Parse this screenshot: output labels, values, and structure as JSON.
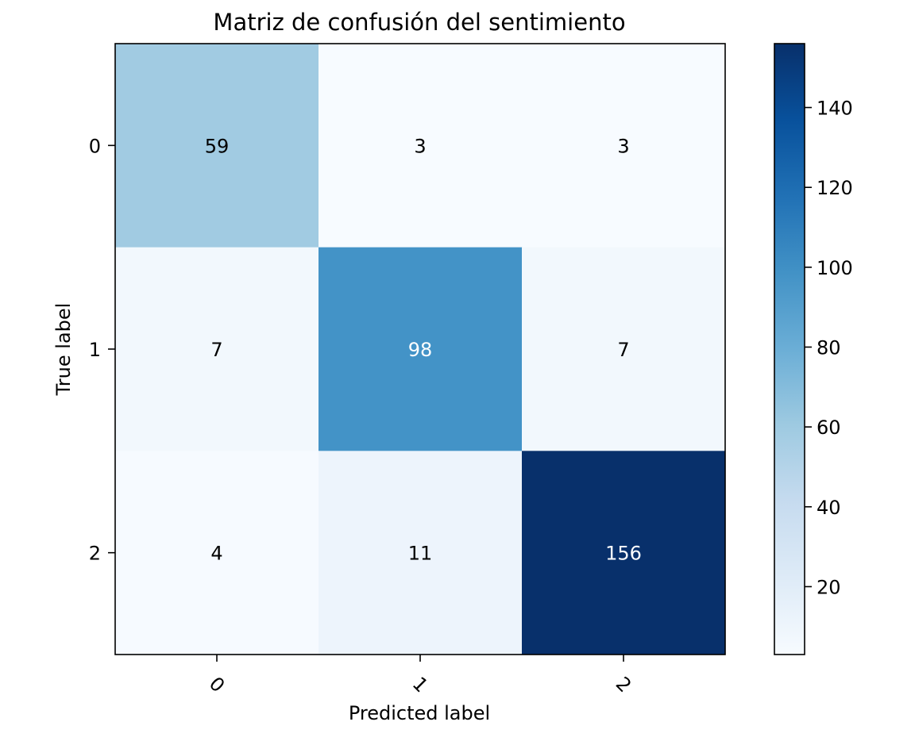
{
  "chart_data": {
    "type": "heatmap",
    "title": "Matriz de confusión del sentimiento",
    "xlabel": "Predicted label",
    "ylabel": "True label",
    "x_categories": [
      "0",
      "1",
      "2"
    ],
    "y_categories": [
      "0",
      "1",
      "2"
    ],
    "values": [
      [
        59,
        3,
        3
      ],
      [
        7,
        98,
        7
      ],
      [
        4,
        11,
        156
      ]
    ],
    "colormap": "Blues",
    "color_range": [
      3,
      156
    ],
    "colorbar_ticks": [
      20,
      40,
      60,
      80,
      100,
      120,
      140
    ],
    "x_tick_rotation_deg": 45,
    "grid": false
  }
}
